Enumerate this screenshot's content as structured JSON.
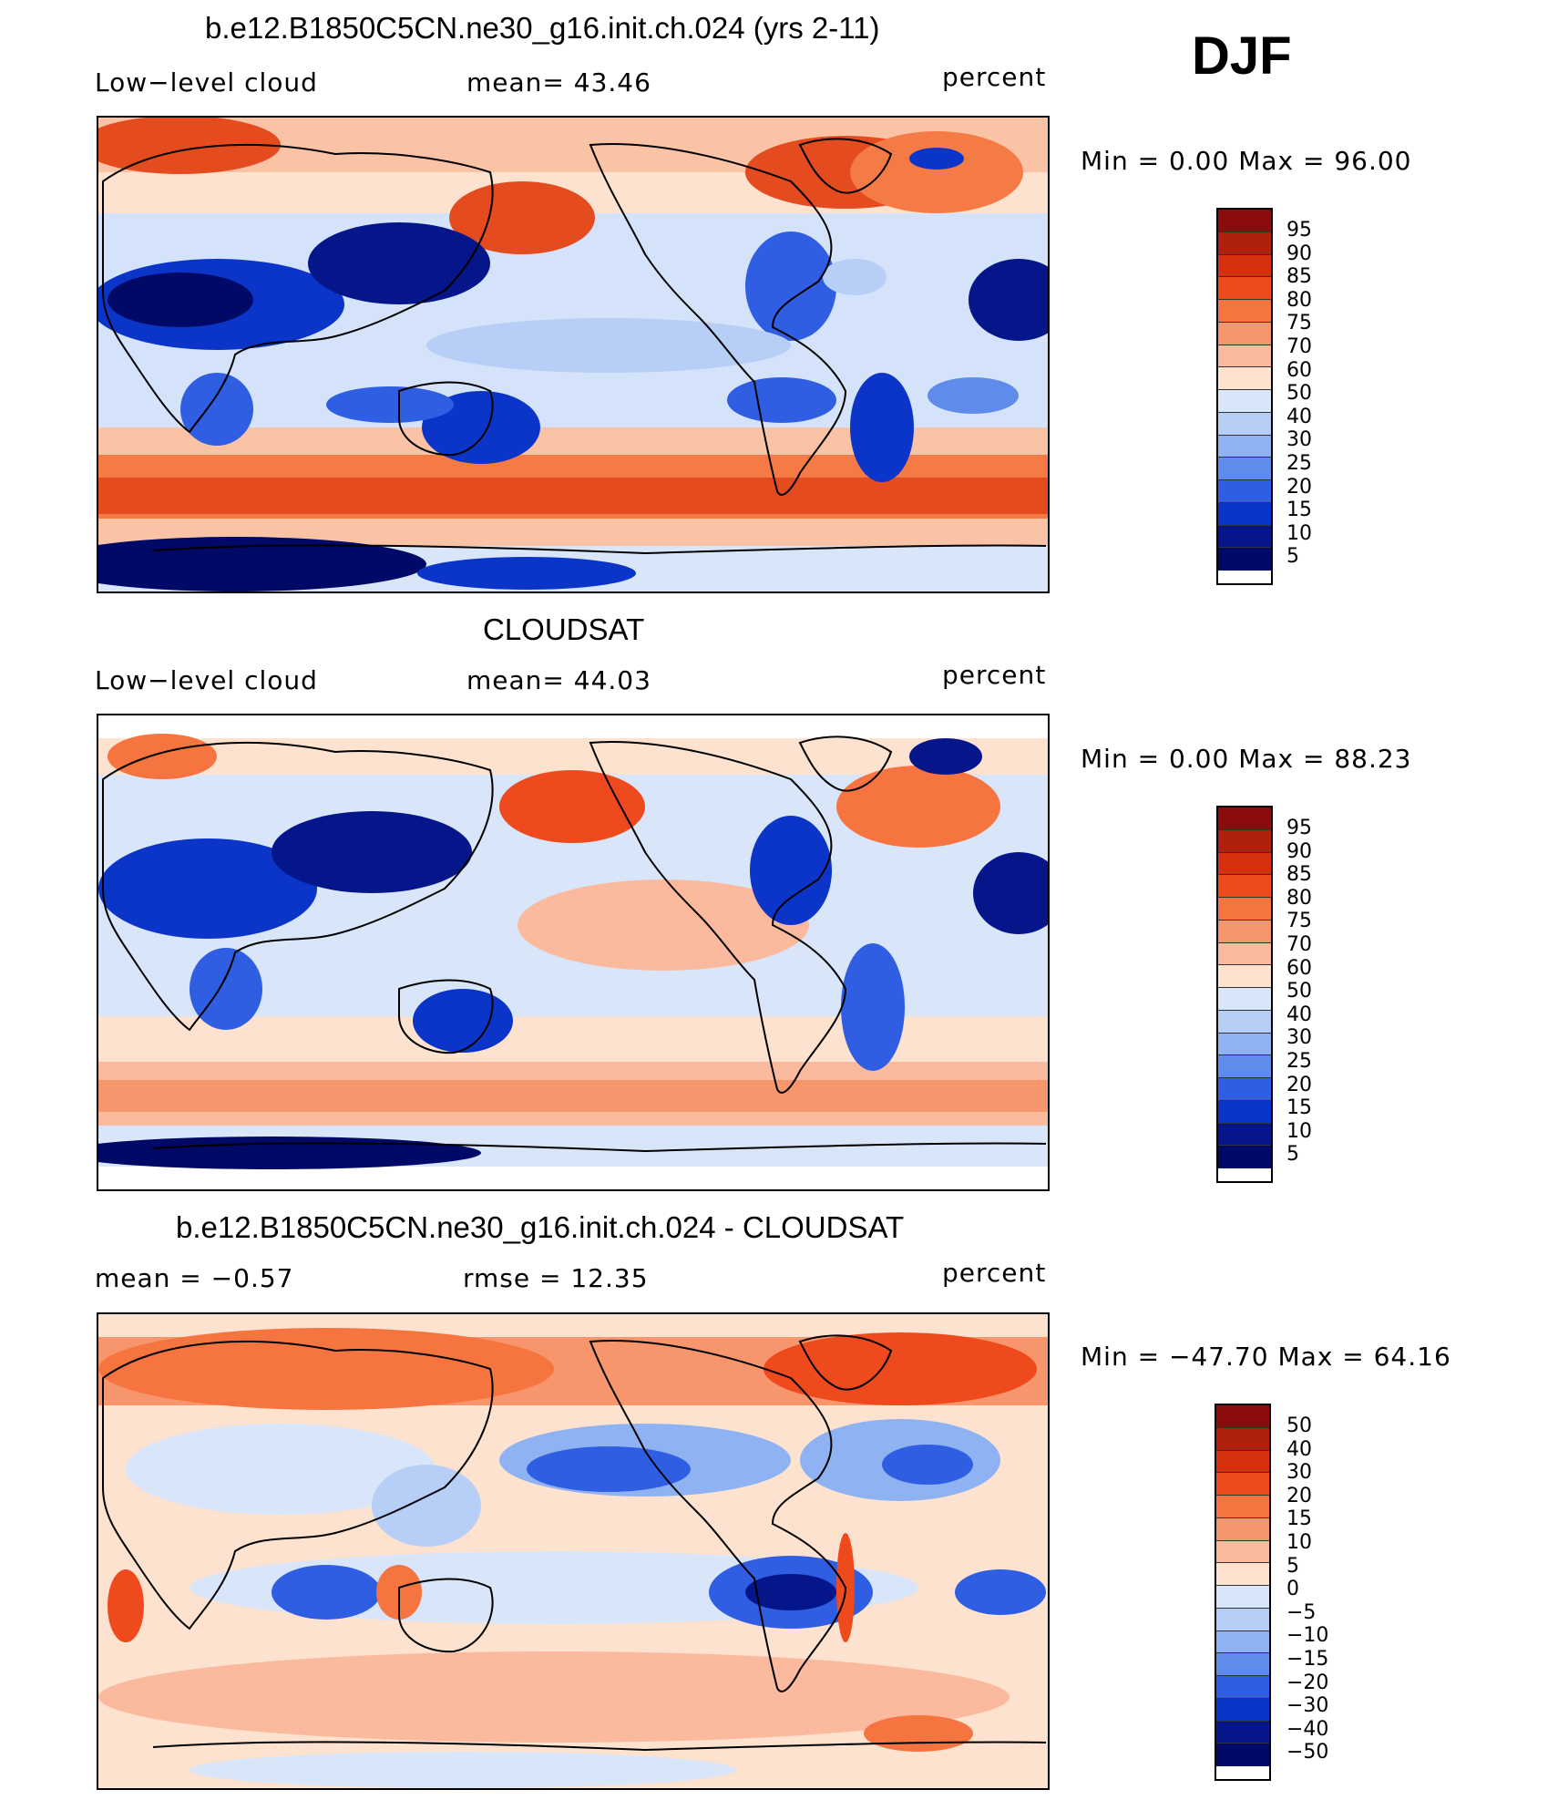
{
  "season": "DJF",
  "panels": [
    {
      "title": "b.e12.B1850C5CN.ne30_g16.init.ch.024 (yrs 2-11)",
      "left_label": "Low−level cloud",
      "center_label": "mean=   43.46",
      "units": "percent",
      "minmax": "Min =     0.00  Max =    96.00",
      "colorbar_labels": [
        "95",
        "90",
        "85",
        "80",
        "75",
        "70",
        "60",
        "50",
        "40",
        "30",
        "25",
        "20",
        "15",
        "10",
        "5"
      ]
    },
    {
      "title": "CLOUDSAT",
      "left_label": "Low−level cloud",
      "center_label": "mean=   44.03",
      "units": "percent",
      "minmax": "Min =     0.00  Max =    88.23",
      "colorbar_labels": [
        "95",
        "90",
        "85",
        "80",
        "75",
        "70",
        "60",
        "50",
        "40",
        "30",
        "25",
        "20",
        "15",
        "10",
        "5"
      ]
    },
    {
      "title": "b.e12.B1850C5CN.ne30_g16.init.ch.024 - CLOUDSAT",
      "left_label": "mean  =    −0.57",
      "center_label": "rmse  =    12.35",
      "units": "percent",
      "minmax": "Min  =  −47.70  Max  =    64.16",
      "colorbar_labels": [
        "50",
        "40",
        "30",
        "20",
        "15",
        "10",
        "5",
        "0",
        "−5",
        "−10",
        "−15",
        "−20",
        "−30",
        "−40",
        "−50"
      ]
    }
  ],
  "colors": {
    "colorbar": [
      "#8b0c0c",
      "#b0200f",
      "#d5310f",
      "#ee4a1e",
      "#f6743f",
      "#f7956c",
      "#fbb99d",
      "#fde2cf",
      "#d9e6fa",
      "#b7cff7",
      "#8fb3f2",
      "#5f8cea",
      "#2f5ee2",
      "#0b35c9",
      "#04168a",
      "#000a66"
    ],
    "land_outline": "#000000"
  },
  "legend_colorbar_levels": 16
}
